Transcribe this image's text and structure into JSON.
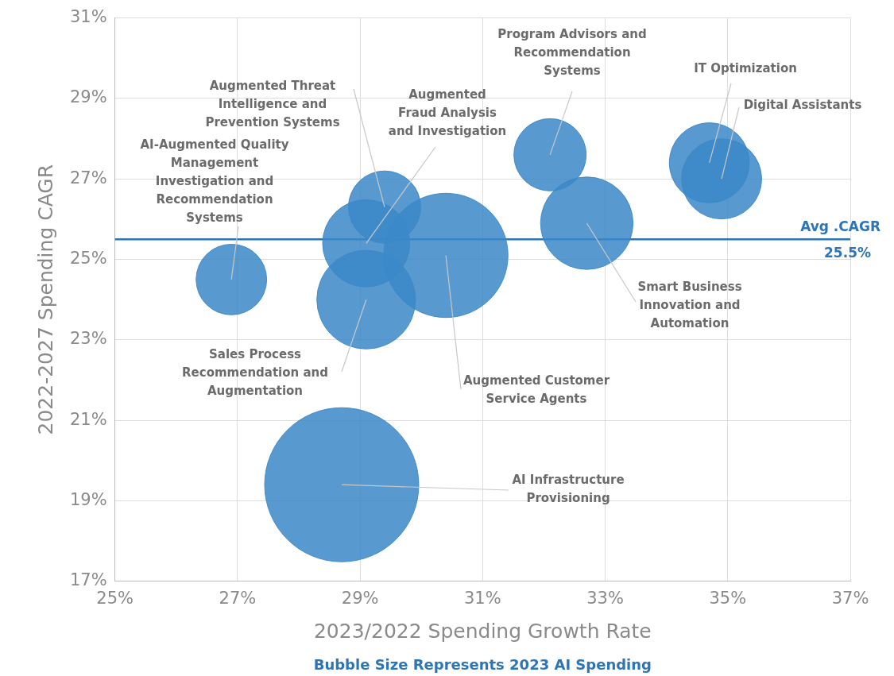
{
  "chart_data": {
    "type": "bubble",
    "xlabel": "2023/2022 Spending Growth Rate",
    "ylabel": "2022-2027 Spending CAGR",
    "series": [
      {
        "color": "#3b88c8",
        "x": [
          26.9,
          29.4,
          29.1,
          29.1,
          30.4,
          28.7,
          32.1,
          32.7,
          34.7,
          34.9
        ],
        "values": [
          24.5,
          26.3,
          25.4,
          24.0,
          25.1,
          19.4,
          27.6,
          25.9,
          27.4,
          27.0
        ],
        "sizes": [
          0.21,
          0.22,
          0.32,
          0.41,
          0.65,
          1,
          0.22,
          0.36,
          0.27,
          0.27
        ]
      }
    ],
    "xlim": [
      25,
      37
    ],
    "xticks": [
      {
        "value": 25,
        "label": "25%"
      },
      {
        "value": 27,
        "label": "27%"
      },
      {
        "value": 29,
        "label": "29%"
      },
      {
        "value": 31,
        "label": "31%"
      },
      {
        "value": 33,
        "label": "33%"
      },
      {
        "value": 35,
        "label": "35%"
      },
      {
        "value": 37,
        "label": "37%"
      }
    ],
    "ylim": [
      17,
      31
    ],
    "yticks": [
      {
        "value": 17,
        "label": "17%"
      },
      {
        "value": 19,
        "label": "19%"
      },
      {
        "value": 21,
        "label": "21%"
      },
      {
        "value": 23,
        "label": "23%"
      },
      {
        "value": 25,
        "label": "25%"
      },
      {
        "value": 27,
        "label": "27%"
      },
      {
        "value": 29,
        "label": "29%"
      },
      {
        "value": 31,
        "label": "31%"
      }
    ],
    "grid": true,
    "legend": false,
    "ref_lines": [
      {
        "axis": "y",
        "value": 25.5,
        "label": "Avg .CAGR\n25.5%",
        "color": "#2e75b6"
      }
    ],
    "annotations": [
      {
        "text": "AI-Augmented Quality Management Investigation and Recommendation Systems",
        "x": 26.9,
        "y": 24.5
      },
      {
        "text": "Augmented Threat Intelligence and Prevention Systems",
        "x": 29.4,
        "y": 26.3
      },
      {
        "text": "Augmented Fraud Analysis and Investigation",
        "x": 29.1,
        "y": 25.4
      },
      {
        "text": "Sales Process Recommendation and Augmentation",
        "x": 29.1,
        "y": 24.0
      },
      {
        "text": "Augmented Customer Service Agents",
        "x": 30.4,
        "y": 25.1
      },
      {
        "text": "AI Infrastructure Provisioning",
        "x": 28.7,
        "y": 19.4
      },
      {
        "text": "Program Advisors and Recommendation Systems",
        "x": 32.1,
        "y": 27.6
      },
      {
        "text": "Smart Business Innovation and Automation",
        "x": 32.7,
        "y": 25.9
      },
      {
        "text": "IT Optimization",
        "x": 34.7,
        "y": 27.4
      },
      {
        "text": "Digital Assistants",
        "x": 34.9,
        "y": 27.0
      },
      "Bubble Size Represents 2023 AI Spending"
    ]
  }
}
